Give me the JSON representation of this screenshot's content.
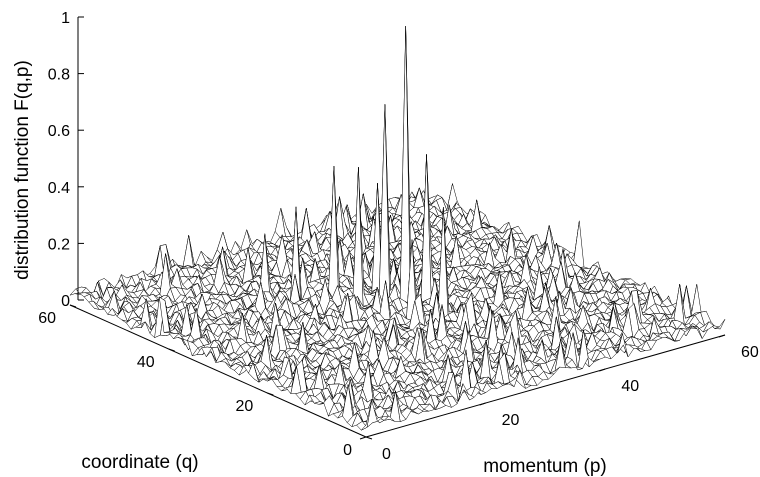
{
  "chart_data": {
    "type": "surface",
    "title": "",
    "zlabel": "distribution function F(q,p)",
    "ylabel": "coordinate (q)",
    "xlabel": "momentum (p)",
    "z_ticks": [
      "0",
      "0.2",
      "0.4",
      "0.6",
      "0.8",
      "1"
    ],
    "q_ticks": [
      "0",
      "20",
      "40",
      "60"
    ],
    "p_ticks": [
      "0",
      "20",
      "40",
      "60"
    ],
    "xlim": [
      0,
      60
    ],
    "ylim": [
      0,
      60
    ],
    "zlim": [
      0,
      1
    ],
    "grid_size": 64,
    "background_level": 0.03,
    "background_noise_amplitude": 0.05,
    "peaks": [
      {
        "q": 32,
        "p": 33,
        "value": 1.0
      },
      {
        "q": 34,
        "p": 31,
        "value": 0.72
      },
      {
        "q": 30,
        "p": 35,
        "value": 0.55
      },
      {
        "q": 36,
        "p": 29,
        "value": 0.5
      },
      {
        "q": 40,
        "p": 28,
        "value": 0.48
      },
      {
        "q": 25,
        "p": 33,
        "value": 0.42
      },
      {
        "q": 38,
        "p": 33,
        "value": 0.4
      },
      {
        "q": 42,
        "p": 23,
        "value": 0.35
      },
      {
        "q": 28,
        "p": 30,
        "value": 0.3
      },
      {
        "q": 45,
        "p": 20,
        "value": 0.25
      }
    ]
  }
}
